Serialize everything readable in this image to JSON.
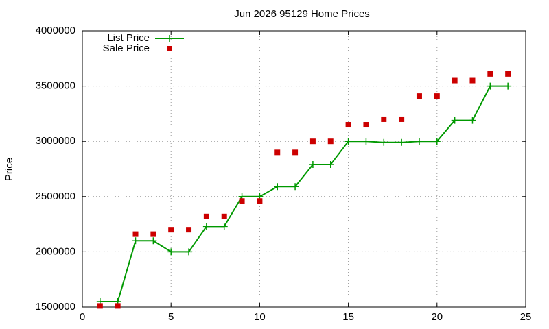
{
  "chart_data": {
    "type": "line",
    "title": "Jun 2026 95129 Home Prices",
    "y_label": "Price",
    "x": [
      1,
      2,
      3,
      4,
      5,
      6,
      7,
      8,
      9,
      10,
      11,
      12,
      13,
      14,
      15,
      16,
      17,
      18,
      19,
      20,
      21,
      22,
      23,
      24
    ],
    "series": [
      {
        "name": "List Price",
        "color": "#009900",
        "style": "linespoints",
        "values": [
          1550000,
          1550000,
          2100000,
          2100000,
          2000000,
          2000000,
          2230000,
          2230000,
          2500000,
          2500000,
          2590000,
          2590000,
          2790000,
          2790000,
          3000000,
          3000000,
          2990000,
          2990000,
          3000000,
          3000000,
          3190000,
          3190000,
          3500000,
          3500000
        ]
      },
      {
        "name": "Sale Price",
        "color": "#cc0000",
        "style": "points",
        "values": [
          1510000,
          1510000,
          2160000,
          2160000,
          2200000,
          2200000,
          2320000,
          2320000,
          2460000,
          2460000,
          2900000,
          2900000,
          3000000,
          3000000,
          3150000,
          3150000,
          3200000,
          3200000,
          3410000,
          3410000,
          3550000,
          3550000,
          3610000,
          3610000
        ]
      }
    ],
    "xlim": [
      0,
      25
    ],
    "xticks": [
      0,
      5,
      10,
      15,
      20,
      25
    ],
    "ylim": [
      1500000,
      4000000
    ],
    "yticks": [
      1500000,
      2000000,
      2500000,
      3000000,
      3500000,
      4000000
    ],
    "grid": true,
    "legend": "top-left"
  }
}
